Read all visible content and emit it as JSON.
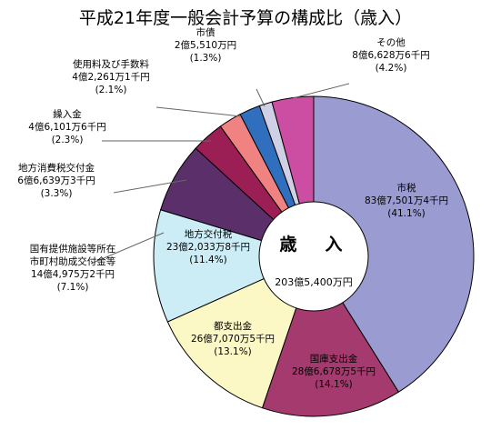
{
  "chart_data": {
    "type": "pie",
    "title": "平成21年度一般会計予算の構成比（歳入）",
    "center_label": "歳　入",
    "center_total": "203億5,400万円",
    "colors": {
      "edge": "#000000",
      "leader": "#666666",
      "background": "#ffffff"
    },
    "series": [
      {
        "name": "市税",
        "amount": "83億7,501万4千円",
        "pct_label": "(41.1%)",
        "value": 41.1,
        "color": "#9a9bd1"
      },
      {
        "name": "国庫支出金",
        "amount": "28億6,678万5千円",
        "pct_label": "(14.1%)",
        "value": 14.1,
        "color": "#a53a6e"
      },
      {
        "name": "都支出金",
        "amount": "26億7,070万5千円",
        "pct_label": "(13.1%)",
        "value": 13.1,
        "color": "#fcf8c6"
      },
      {
        "name": "地方交付税",
        "amount": "23億2,033万8千円",
        "pct_label": "(11.4%)",
        "value": 11.4,
        "color": "#cdedf6"
      },
      {
        "name": "国有提供施設等所在\n市町村助成交付金等",
        "amount": "14億4,975万2千円",
        "pct_label": "(7.1%)",
        "value": 7.1,
        "color": "#5a2f6a"
      },
      {
        "name": "地方消費税交付金",
        "amount": "6億6,639万3千円",
        "pct_label": "(3.3%)",
        "value": 3.3,
        "color": "#9b1f55"
      },
      {
        "name": "繰入金",
        "amount": "4億6,101万6千円",
        "pct_label": "(2.3%)",
        "value": 2.3,
        "color": "#f08282"
      },
      {
        "name": "使用料及び手数料",
        "amount": "4億2,261万1千円",
        "pct_label": "(2.1%)",
        "value": 2.1,
        "color": "#2f6fbd"
      },
      {
        "name": "市債",
        "amount": "2億5,510万円",
        "pct_label": "(1.3%)",
        "value": 1.3,
        "color": "#cfcfe6"
      },
      {
        "name": "その他",
        "amount": "8億6,628万6千円",
        "pct_label": "(4.2%)",
        "value": 4.2,
        "color": "#cc4ea3"
      }
    ]
  }
}
